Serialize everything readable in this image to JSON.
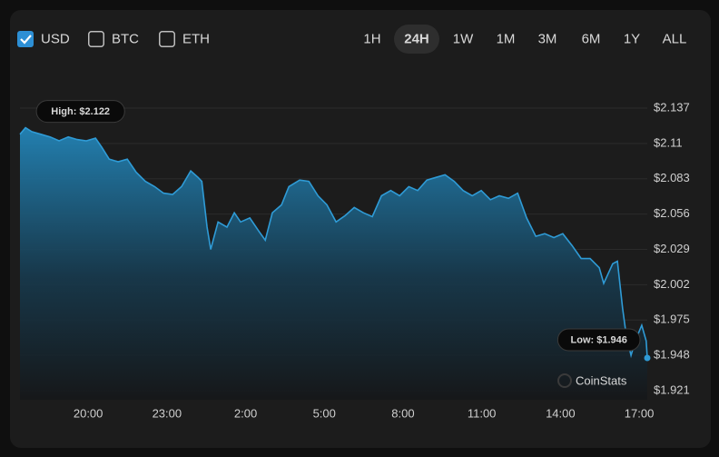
{
  "controls": {
    "currencies": [
      {
        "label": "USD",
        "checked": true
      },
      {
        "label": "BTC",
        "checked": false
      },
      {
        "label": "ETH",
        "checked": false
      }
    ],
    "timeframes": [
      "1H",
      "24H",
      "1W",
      "1M",
      "3M",
      "6M",
      "1Y",
      "ALL"
    ],
    "selected_timeframe": "24H"
  },
  "watermark": "CoinStats",
  "chart_data": {
    "type": "area",
    "color": "#2f9bd6",
    "grid": true,
    "x": [
      17.4,
      17.61,
      17.85,
      18.2,
      18.55,
      18.89,
      19.24,
      19.58,
      19.93,
      20.28,
      20.52,
      20.8,
      21.14,
      21.49,
      21.83,
      22.18,
      22.53,
      22.87,
      23.22,
      23.56,
      23.91,
      24.19,
      24.33,
      24.53,
      24.67,
      24.95,
      25.29,
      25.57,
      25.81,
      26.16,
      26.5,
      26.75,
      27.02,
      27.37,
      27.65,
      28.06,
      28.41,
      28.76,
      29.1,
      29.45,
      29.8,
      30.14,
      30.49,
      30.83,
      31.18,
      31.53,
      31.87,
      32.22,
      32.56,
      32.91,
      33.25,
      33.6,
      33.95,
      34.29,
      34.64,
      34.98,
      35.33,
      35.67,
      36.02,
      36.37,
      36.71,
      37.06,
      37.4,
      37.75,
      38.09,
      38.44,
      38.79,
      39.13,
      39.48,
      39.65,
      39.99,
      40.17,
      40.37,
      40.51,
      40.69,
      40.85,
      41.1,
      41.27,
      41.31
    ],
    "values": [
      2.117,
      2.122,
      2.119,
      2.117,
      2.115,
      2.112,
      2.115,
      2.113,
      2.112,
      2.114,
      2.107,
      2.098,
      2.096,
      2.098,
      2.088,
      2.081,
      2.077,
      2.072,
      2.071,
      2.077,
      2.089,
      2.084,
      2.081,
      2.046,
      2.029,
      2.05,
      2.046,
      2.057,
      2.05,
      2.053,
      2.043,
      2.036,
      2.057,
      2.063,
      2.077,
      2.082,
      2.081,
      2.07,
      2.063,
      2.05,
      2.055,
      2.061,
      2.057,
      2.054,
      2.07,
      2.074,
      2.07,
      2.077,
      2.074,
      2.082,
      2.084,
      2.086,
      2.081,
      2.074,
      2.07,
      2.074,
      2.067,
      2.07,
      2.068,
      2.072,
      2.053,
      2.039,
      2.041,
      2.038,
      2.041,
      2.032,
      2.022,
      2.022,
      2.015,
      2.003,
      2.018,
      2.02,
      1.984,
      1.963,
      1.948,
      1.959,
      1.971,
      1.959,
      1.946
    ],
    "xlim": [
      17.4,
      41.31
    ],
    "xticks": [
      {
        "value": 20,
        "label": "20:00"
      },
      {
        "value": 23,
        "label": "23:00"
      },
      {
        "value": 26,
        "label": "2:00"
      },
      {
        "value": 29,
        "label": "5:00"
      },
      {
        "value": 32,
        "label": "8:00"
      },
      {
        "value": 35,
        "label": "11:00"
      },
      {
        "value": 38,
        "label": "14:00"
      },
      {
        "value": 41,
        "label": "17:00"
      }
    ],
    "ylim": [
      1.921,
      2.137
    ],
    "yticks": [
      {
        "value": 2.137,
        "label": "$2.137"
      },
      {
        "value": 2.11,
        "label": "$2.11"
      },
      {
        "value": 2.083,
        "label": "$2.083"
      },
      {
        "value": 2.056,
        "label": "$2.056"
      },
      {
        "value": 2.029,
        "label": "$2.029"
      },
      {
        "value": 2.002,
        "label": "$2.002"
      },
      {
        "value": 1.975,
        "label": "$1.975"
      },
      {
        "value": 1.948,
        "label": "$1.948"
      },
      {
        "value": 1.921,
        "label": "$1.921"
      }
    ],
    "annotations": [
      {
        "text": "High: $2.122",
        "value": 2.122
      },
      {
        "text": "Low: $1.946",
        "value": 1.946
      }
    ]
  }
}
